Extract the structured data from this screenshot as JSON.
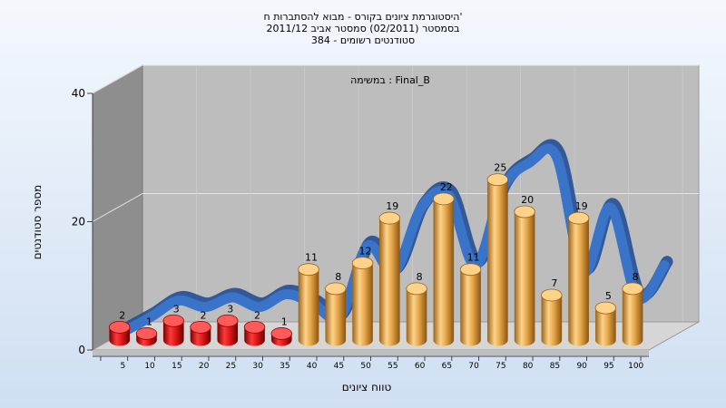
{
  "chart_data": {
    "type": "bar",
    "title_lines": [
      "היסטוגרמת ציונים בקורס - מבוא להסתברות ח'",
      "בסמסטר  (02/2011)  סמסטר אביב 2011/12",
      "סטודנטים רשומים - 384"
    ],
    "legend_label": "במשימה : Final_B",
    "xlabel": "טווח ציונים",
    "ylabel": "מספר סטודנטים",
    "ylim": [
      0,
      40
    ],
    "y_ticks": [
      "0",
      "20",
      "40"
    ],
    "categories": [
      "5",
      "10",
      "15",
      "20",
      "25",
      "30",
      "35",
      "40",
      "45",
      "50",
      "55",
      "60",
      "65",
      "70",
      "75",
      "80",
      "85",
      "90",
      "95",
      "100"
    ],
    "values": [
      2,
      1,
      3,
      2,
      3,
      2,
      1,
      11,
      8,
      12,
      19,
      8,
      22,
      11,
      25,
      20,
      7,
      19,
      5,
      8
    ],
    "curve": [
      0.7,
      3,
      5.5,
      4.5,
      6,
      4.5,
      6.5,
      5,
      3,
      14,
      10,
      20,
      22,
      11,
      23,
      27,
      28,
      10,
      20,
      6,
      11
    ],
    "grid": true,
    "colors": {
      "fail_bar": "#e01818",
      "pass_bar": "#e0a040",
      "curve": "#3a74c8",
      "wall": "#bdbdbd",
      "left_wall": "#8e8e8e",
      "floor": "#d6d6d6",
      "background": "#e2ecf8"
    }
  }
}
